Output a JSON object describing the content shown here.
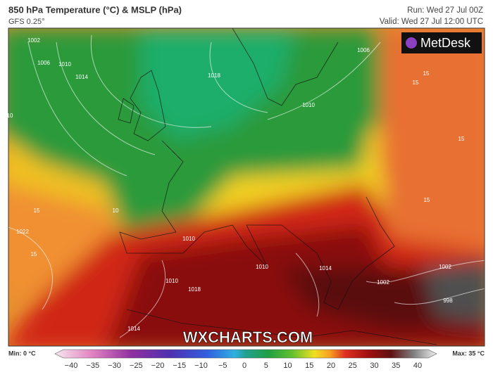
{
  "header": {
    "title": "850 hPa Temperature (°C) & MSLP (hPa)",
    "model": "GFS 0.25°",
    "run": "Run: Wed 27 Jul 00Z",
    "valid": "Valid: Wed 27 Jul 12:00 UTC"
  },
  "map": {
    "logo": "MetDesk",
    "watermark": "WXCHARTS.COM",
    "contour_labels": [
      "1002",
      "1006",
      "1010",
      "1014",
      "1018",
      "10",
      "1010",
      "1006",
      "15",
      "10",
      "15",
      "1022",
      "15",
      "15",
      "1018",
      "1010",
      "1010",
      "1014",
      "1002",
      "998",
      "15",
      "15",
      "1014",
      "1010",
      "1002"
    ]
  },
  "colorbar": {
    "min_label": "Min: 0 °C",
    "max_label": "Max: 35 °C",
    "ticks": [
      {
        "value": -40,
        "label": "−40"
      },
      {
        "value": -35,
        "label": "−35"
      },
      {
        "value": -30,
        "label": "−30"
      },
      {
        "value": -25,
        "label": "−25"
      },
      {
        "value": -20,
        "label": "−20"
      },
      {
        "value": -15,
        "label": "−15"
      },
      {
        "value": -10,
        "label": "−10"
      },
      {
        "value": -5,
        "label": "−5"
      },
      0,
      5,
      10,
      15,
      20,
      25,
      30,
      35,
      40
    ]
  }
}
